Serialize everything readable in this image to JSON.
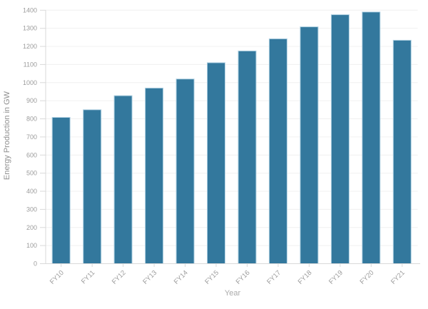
{
  "chart_data": {
    "type": "bar",
    "title": "",
    "xlabel": "Year",
    "ylabel": "Energy Production in GW",
    "categories": [
      "FY10",
      "FY11",
      "FY12",
      "FY13",
      "FY14",
      "FY15",
      "FY16",
      "FY17",
      "FY18",
      "FY19",
      "FY20",
      "FY21"
    ],
    "values": [
      808,
      850,
      928,
      970,
      1020,
      1110,
      1175,
      1242,
      1308,
      1375,
      1390,
      1234
    ],
    "ylim": [
      0,
      1400
    ],
    "ytick_step": 100,
    "ytick_labels": [
      "0",
      "100",
      "200",
      "300",
      "400",
      "500",
      "600",
      "700",
      "800",
      "900",
      "1000",
      "1100",
      "1200",
      "1300",
      "1400"
    ],
    "grid": true,
    "legend_position": "none",
    "colors": {
      "bar_fill": "#33789D",
      "bar_stroke": "#AFD0E2",
      "gridline": "#F0F0F0",
      "axis_line": "#D9D9D9",
      "tick_label": "#9C9C9C",
      "y_axis_title": "#8F8F8F",
      "x_axis_title": "#ABABAB",
      "background": "#FFFFFF"
    }
  }
}
